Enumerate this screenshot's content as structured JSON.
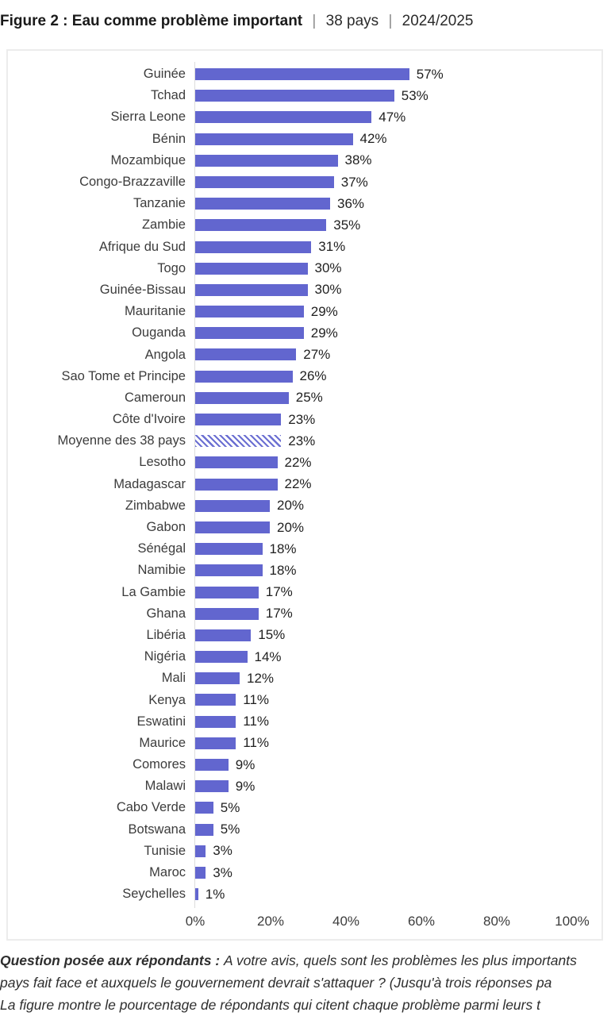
{
  "title": {
    "figure_label": "Figure 2 : Eau comme problème important",
    "separator": "|",
    "countries_count": "38 pays",
    "period": "2024/2025"
  },
  "chart_data": {
    "type": "bar",
    "orientation": "horizontal",
    "title": "Figure 2 : Eau comme problème important | 38 pays | 2024/2025",
    "xlabel": "",
    "ylabel": "",
    "xlim": [
      0,
      100
    ],
    "grid": false,
    "bar_color": "#6266cf",
    "value_suffix": "%",
    "average_category": "Moyenne des 38 pays",
    "categories": [
      "Guinée",
      "Tchad",
      "Sierra Leone",
      "Bénin",
      "Mozambique",
      "Congo-Brazzaville",
      "Tanzanie",
      "Zambie",
      "Afrique du Sud",
      "Togo",
      "Guinée-Bissau",
      "Mauritanie",
      "Ouganda",
      "Angola",
      "Sao Tome et Principe",
      "Cameroun",
      "Côte d'Ivoire",
      "Moyenne des 38 pays",
      "Lesotho",
      "Madagascar",
      "Zimbabwe",
      "Gabon",
      "Sénégal",
      "Namibie",
      "La Gambie",
      "Ghana",
      "Libéria",
      "Nigéria",
      "Mali",
      "Kenya",
      "Eswatini",
      "Maurice",
      "Comores",
      "Malawi",
      "Cabo Verde",
      "Botswana",
      "Tunisie",
      "Maroc",
      "Seychelles"
    ],
    "values": [
      57,
      53,
      47,
      42,
      38,
      37,
      36,
      35,
      31,
      30,
      30,
      29,
      29,
      27,
      26,
      25,
      23,
      23,
      22,
      22,
      20,
      20,
      18,
      18,
      17,
      17,
      15,
      14,
      12,
      11,
      11,
      11,
      9,
      9,
      5,
      5,
      3,
      3,
      1
    ],
    "value_labels": [
      "57%",
      "53%",
      "47%",
      "42%",
      "38%",
      "37%",
      "36%",
      "35%",
      "31%",
      "30%",
      "30%",
      "29%",
      "29%",
      "27%",
      "26%",
      "25%",
      "23%",
      "23%",
      "22%",
      "22%",
      "20%",
      "20%",
      "18%",
      "18%",
      "17%",
      "17%",
      "15%",
      "14%",
      "12%",
      "11%",
      "11%",
      "11%",
      "9%",
      "9%",
      "5%",
      "5%",
      "3%",
      "3%",
      "1%"
    ],
    "x_tick_values": [
      0,
      20,
      40,
      60,
      80,
      100
    ],
    "x_tick_labels": [
      "0%",
      "20%",
      "40%",
      "60%",
      "80%",
      "100%"
    ]
  },
  "footnote": {
    "lead": "Question posée aux répondants : ",
    "line1_rest": "A votre avis, quels sont les problèmes les plus importants",
    "line2": "pays fait face et auxquels le gouvernement devrait s'attaquer ? (Jusqu'à trois réponses pa",
    "line3": "La figure montre le pourcentage de répondants qui citent chaque problème parmi leurs t"
  }
}
